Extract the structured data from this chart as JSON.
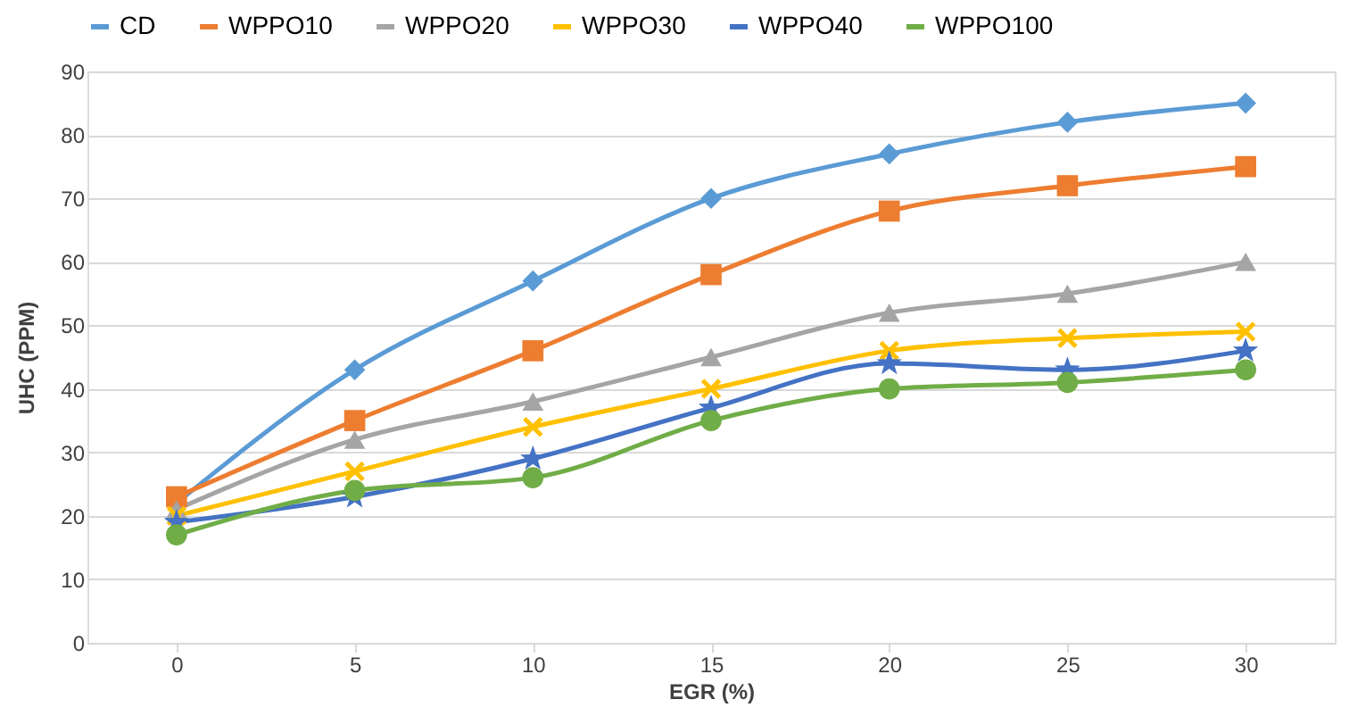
{
  "chart_data": {
    "type": "line",
    "xlabel": "EGR (%)",
    "ylabel": "UHC (PPM)",
    "categories": [
      "0",
      "5",
      "10",
      "15",
      "20",
      "25",
      "30"
    ],
    "series": [
      {
        "name": "CD",
        "color": "#5b9bd5",
        "marker": "diamond",
        "values": [
          22,
          43,
          57,
          70,
          77,
          82,
          85
        ]
      },
      {
        "name": "WPPO10",
        "color": "#ed7d31",
        "marker": "square",
        "values": [
          23,
          35,
          46,
          58,
          68,
          72,
          75
        ]
      },
      {
        "name": "WPPO20",
        "color": "#a5a5a5",
        "marker": "triangle",
        "values": [
          21,
          32,
          38,
          45,
          52,
          55,
          60
        ]
      },
      {
        "name": "WPPO30",
        "color": "#ffc000",
        "marker": "cross",
        "values": [
          20,
          27,
          34,
          40,
          46,
          48,
          49
        ]
      },
      {
        "name": "WPPO40",
        "color": "#4472c4",
        "marker": "star",
        "values": [
          19,
          23,
          29,
          37,
          44,
          43,
          46
        ]
      },
      {
        "name": "WPPO100",
        "color": "#70ad47",
        "marker": "circle",
        "values": [
          17,
          24,
          26,
          35,
          40,
          41,
          43
        ]
      }
    ],
    "ylim": [
      0,
      90
    ],
    "yticks": [
      0,
      10,
      20,
      30,
      40,
      50,
      60,
      70,
      80,
      90
    ],
    "grid": "y",
    "legend": "top",
    "line_style": "solid"
  }
}
